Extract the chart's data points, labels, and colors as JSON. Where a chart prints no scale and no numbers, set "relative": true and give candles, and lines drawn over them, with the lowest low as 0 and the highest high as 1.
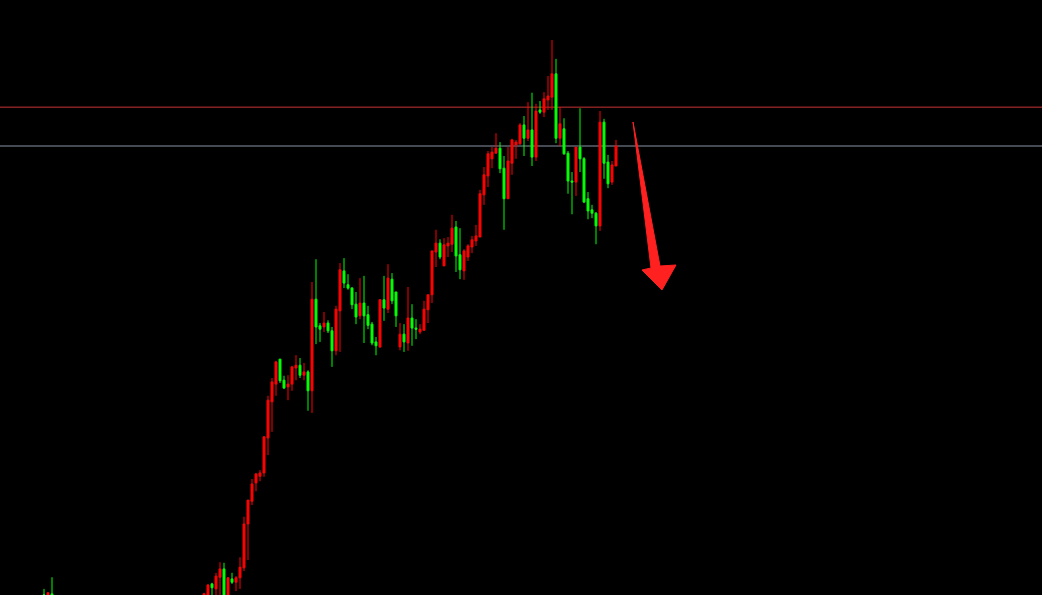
{
  "chart_data": {
    "type": "candlestick",
    "relative": true,
    "tick_labels": false,
    "colors": [
      "#00ff00",
      "#ff0000",
      "#00ff00",
      null,
      null,
      null,
      null,
      null,
      null,
      null,
      null,
      null,
      null,
      null,
      null,
      null,
      null,
      null,
      null,
      null,
      null,
      null,
      null,
      null,
      null,
      null,
      null,
      null,
      null,
      null,
      null,
      null,
      null,
      null,
      null,
      null,
      null,
      null,
      null,
      null,
      "#ff0000",
      "#ff0000",
      "#00ff00",
      "#ff0000",
      "#ff0000",
      "#00ff00",
      "#ff0000",
      "#00ff00",
      "#ff0000",
      "#ff0000",
      "#ff0000",
      "#ff0000",
      "#ff0000",
      "#ff0000",
      "#ff0000",
      "#ff0000",
      "#ff0000",
      "#ff0000",
      "#ff0000",
      "#00ff00",
      "#00ff00",
      "#ff0000",
      "#ff0000",
      "#ff0000",
      "#00ff00",
      "#ff0000",
      "#00ff00",
      "#ff0000",
      "#00ff00",
      "#00ff00",
      "#ff0000",
      "#00ff00",
      "#00ff00",
      "#ff0000",
      "#ff0000",
      "#00ff00",
      "#00ff00",
      "#00ff00",
      "#00ff00",
      "#ff0000",
      "#00ff00",
      "#00ff00",
      "#00ff00",
      "#00ff00",
      "#ff0000",
      "#00ff00",
      "#ff0000",
      "#00ff00",
      "#00ff00",
      "#ff0000",
      "#00ff00",
      "#ff0000",
      "#00ff00",
      "#00ff00",
      "#ff0000",
      "#ff0000",
      "#ff0000",
      "#ff0000",
      "#ff0000",
      "#00ff00",
      "#ff0000",
      "#ff0000",
      "#ff0000",
      "#00ff00",
      "#00ff00",
      "#ff0000",
      "#ff0000",
      "#ff0000",
      "#ff0000",
      "#ff0000",
      "#ff0000",
      "#ff0000",
      "#ff0000",
      "#ff0000",
      "#00ff00",
      "#00ff00",
      "#ff0000",
      "#ff0000",
      "#ff0000",
      "#ff0000",
      "#00ff00",
      "#ff0000",
      "#00ff00",
      "#ff0000",
      "#00ff00",
      "#ff0000",
      "#ff0000",
      "#ff0000",
      "#00ff00",
      "#ff0000",
      "#00ff00",
      "#00ff00",
      "#00ff00",
      "#ff0000",
      "#00ff00",
      "#00ff00",
      "#00ff00",
      "#00ff00",
      "#00ff00",
      "#ff0000",
      "#00ff00",
      "#00ff00",
      "#ff0000",
      "#ff0000"
    ],
    "categories": [
      null,
      null,
      null,
      null,
      null,
      null,
      null,
      null,
      null,
      null,
      null,
      null,
      null,
      null,
      null,
      null,
      null,
      null,
      null,
      null,
      null,
      null,
      null,
      null,
      null,
      null,
      null,
      null,
      null,
      null,
      null,
      null,
      null,
      null,
      null,
      null,
      null,
      null,
      null,
      null,
      null,
      null,
      null,
      null,
      null,
      null,
      null,
      null,
      null,
      null,
      null,
      null,
      null,
      null,
      null,
      null,
      null,
      null,
      null,
      null,
      null,
      null,
      null,
      null,
      null,
      null,
      null,
      null,
      null,
      null,
      null,
      null,
      null,
      null,
      null,
      null,
      null,
      null,
      null,
      null,
      null,
      null,
      null,
      null,
      null,
      null,
      null,
      null,
      null,
      null,
      null,
      null,
      null,
      null,
      null,
      null,
      null,
      null,
      null,
      null,
      null,
      null,
      null,
      null,
      null,
      null,
      null,
      null,
      null,
      null,
      null,
      null,
      null,
      null,
      null,
      null,
      null,
      null,
      null,
      null,
      null,
      null,
      null,
      null,
      null,
      null,
      null,
      null,
      null,
      null,
      null,
      null,
      null,
      null,
      null,
      null,
      null,
      null,
      null,
      null,
      null,
      null,
      null,
      null
    ],
    "ohlc": [
      [
        0,
        0.011,
        0,
        0
      ],
      [
        0,
        0.005,
        0,
        0.004
      ],
      [
        0.002,
        0.032,
        0,
        0
      ],
      null,
      null,
      null,
      null,
      null,
      null,
      null,
      null,
      null,
      null,
      null,
      null,
      null,
      null,
      null,
      null,
      null,
      null,
      null,
      null,
      null,
      null,
      null,
      null,
      null,
      null,
      null,
      null,
      null,
      null,
      null,
      null,
      null,
      null,
      null,
      null,
      null,
      [
        0,
        0.004,
        0,
        0.002
      ],
      [
        0,
        0.02,
        0,
        0.018
      ],
      [
        0.02,
        0.022,
        0,
        0.013
      ],
      [
        0.011,
        0.04,
        0,
        0.034
      ],
      [
        0.032,
        0.059,
        0,
        0.047
      ],
      [
        0.047,
        0.058,
        0,
        0
      ],
      [
        0,
        0.032,
        0,
        0.031
      ],
      [
        0.029,
        0.04,
        0.02,
        0.023
      ],
      [
        0.023,
        0.034,
        0.007,
        0.031
      ],
      [
        0.031,
        0.068,
        0.011,
        0.05
      ],
      [
        0.049,
        0.141,
        0.043,
        0.128
      ],
      [
        0.128,
        0.171,
        0.063,
        0.171
      ],
      [
        0.169,
        0.209,
        0.162,
        0.2
      ],
      [
        0.202,
        0.22,
        0.187,
        0.218
      ],
      [
        0.214,
        0.225,
        0.205,
        0.22
      ],
      [
        0.22,
        0.286,
        0.213,
        0.285
      ],
      [
        0.283,
        0.359,
        0.252,
        0.351
      ],
      [
        0.348,
        0.391,
        0.294,
        0.384
      ],
      [
        0.38,
        0.422,
        0.359,
        0.42
      ],
      [
        0.425,
        0.425,
        0.382,
        0.386
      ],
      [
        0.387,
        0.395,
        0.371,
        0.373
      ],
      [
        0.375,
        0.396,
        0.351,
        0.38
      ],
      [
        0.38,
        0.413,
        0.368,
        0.411
      ],
      [
        0.409,
        0.432,
        0.387,
        0.414
      ],
      [
        0.414,
        0.427,
        0.391,
        0.396
      ],
      [
        0.396,
        0.418,
        0.387,
        0.402
      ],
      [
        0.402,
        0.405,
        0.332,
        0.368
      ],
      [
        0.368,
        0.564,
        0.328,
        0.533
      ],
      [
        0.533,
        0.605,
        0.452,
        0.483
      ],
      [
        0.485,
        0.49,
        0.456,
        0.479
      ],
      [
        0.483,
        0.51,
        0.474,
        0.49
      ],
      [
        0.49,
        0.495,
        0.472,
        0.476
      ],
      [
        0.476,
        0.483,
        0.411,
        0.44
      ],
      [
        0.44,
        0.521,
        0.432,
        0.515
      ],
      [
        0.512,
        0.598,
        0.438,
        0.586
      ],
      [
        0.584,
        0.607,
        0.553,
        0.562
      ],
      [
        0.559,
        0.578,
        0.55,
        0.553
      ],
      [
        0.553,
        0.555,
        0.515,
        0.523
      ],
      [
        0.524,
        0.546,
        0.488,
        0.501
      ],
      [
        0.503,
        0.571,
        0.497,
        0.526
      ],
      [
        0.526,
        0.575,
        0.454,
        0.503
      ],
      [
        0.505,
        0.521,
        0.479,
        0.486
      ],
      [
        0.488,
        0.492,
        0.45,
        0.454
      ],
      [
        0.456,
        0.465,
        0.432,
        0.449
      ],
      [
        0.447,
        0.533,
        0.445,
        0.532
      ],
      [
        0.532,
        0.575,
        0.494,
        0.517
      ],
      [
        0.515,
        0.596,
        0.508,
        0.571
      ],
      [
        0.569,
        0.58,
        0.524,
        0.53
      ],
      [
        0.546,
        0.546,
        0.483,
        0.503
      ],
      [
        0.447,
        0.49,
        0.441,
        0.47
      ],
      [
        0.47,
        0.488,
        0.438,
        0.456
      ],
      [
        0.454,
        0.555,
        0.44,
        0.499
      ],
      [
        0.499,
        0.524,
        0.449,
        0.481
      ],
      [
        0.481,
        0.497,
        0.461,
        0.479
      ],
      [
        0.474,
        0.488,
        0.47,
        0.479
      ],
      [
        0.477,
        0.53,
        0.476,
        0.515
      ],
      [
        0.514,
        0.541,
        0.49,
        0.541
      ],
      [
        0.541,
        0.62,
        0.526,
        0.62
      ],
      [
        0.618,
        0.658,
        0.591,
        0.634
      ],
      [
        0.634,
        0.641,
        0.605,
        0.609
      ],
      [
        0.593,
        0.643,
        0.593,
        0.631
      ],
      [
        0.629,
        0.645,
        0.609,
        0.634
      ],
      [
        0.632,
        0.685,
        0.618,
        0.661
      ],
      [
        0.663,
        0.674,
        0.582,
        0.611
      ],
      [
        0.613,
        0.661,
        0.569,
        0.586
      ],
      [
        0.584,
        0.623,
        0.568,
        0.62
      ],
      [
        0.609,
        0.632,
        0.602,
        0.629
      ],
      [
        0.627,
        0.647,
        0.616,
        0.64
      ],
      [
        0.638,
        0.667,
        0.629,
        0.647
      ],
      [
        0.645,
        0.73,
        0.645,
        0.723
      ],
      [
        0.721,
        0.771,
        0.703,
        0.757
      ],
      [
        0.755,
        0.8,
        0.735,
        0.795
      ],
      [
        0.786,
        0.807,
        0.769,
        0.798
      ],
      [
        0.796,
        0.832,
        0.796,
        0.805
      ],
      [
        0.805,
        0.816,
        0.76,
        0.768
      ],
      [
        0.769,
        0.791,
        0.658,
        0.714
      ],
      [
        0.714,
        0.807,
        0.714,
        0.782
      ],
      [
        0.778,
        0.822,
        0.757,
        0.82
      ],
      [
        0.811,
        0.82,
        0.786,
        0.816
      ],
      [
        0.813,
        0.85,
        0.811,
        0.847
      ],
      [
        0.847,
        0.863,
        0.791,
        0.823
      ],
      [
        0.823,
        0.888,
        0.818,
        0.838
      ],
      [
        0.838,
        0.905,
        0.773,
        0.789
      ],
      [
        0.789,
        0.885,
        0.782,
        0.872
      ],
      [
        0.874,
        0.89,
        0.867,
        0.87
      ],
      [
        0.87,
        0.906,
        0.861,
        0.894
      ],
      [
        0.892,
        0.935,
        0.874,
        0.899
      ],
      [
        0.897,
        1,
        0.874,
        0.939
      ],
      [
        0.939,
        0.966,
        0.814,
        0.823
      ],
      [
        0.823,
        0.879,
        0.809,
        0.849
      ],
      [
        0.84,
        0.859,
        0.793,
        0.795
      ],
      [
        0.796,
        0.8,
        0.723,
        0.746
      ],
      [
        0.746,
        0.762,
        0.686,
        0.744
      ],
      [
        0.744,
        0.807,
        0.719,
        0.807
      ],
      [
        0.807,
        0.877,
        0.762,
        0.786
      ],
      [
        0.786,
        0.789,
        0.706,
        0.708
      ],
      [
        0.714,
        0.726,
        0.677,
        0.692
      ],
      [
        0.694,
        0.703,
        0.679,
        0.688
      ],
      [
        0.688,
        0.69,
        0.632,
        0.665
      ],
      [
        0.665,
        0.872,
        0.656,
        0.852
      ],
      [
        0.852,
        0.858,
        0.75,
        0.778
      ],
      [
        0.78,
        0.793,
        0.733,
        0.741
      ],
      [
        0.744,
        0.782,
        0.739,
        0.775
      ],
      [
        0.773,
        0.82,
        0.773,
        0.809
      ]
    ],
    "ref_lines": [
      {
        "axis": "y",
        "value": 0.879,
        "color": "#c83232"
      },
      {
        "axis": "y",
        "value": 0.809,
        "color": "#8a95a5"
      }
    ]
  }
}
